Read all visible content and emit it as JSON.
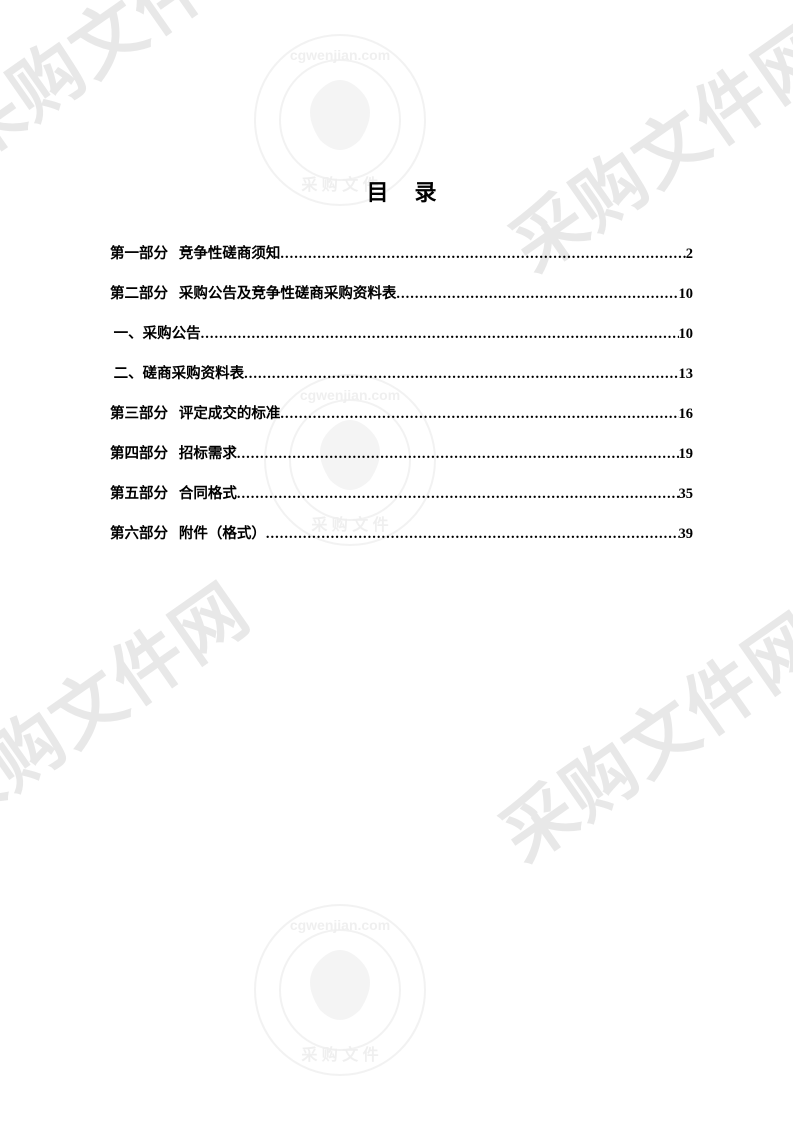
{
  "title": "目录",
  "watermark_text": "采购文件网",
  "watermark_url": "cgwenjian.com",
  "text_color": "#000000",
  "watermark_color": "#e8e8e8",
  "background_color": "#ffffff",
  "title_fontsize": 22,
  "entry_fontsize": 14.5,
  "toc": [
    {
      "label": "第一部分",
      "text": "竞争性磋商须知",
      "page": "2",
      "indent": ""
    },
    {
      "label": "第二部分",
      "text": "采购公告及竞争性磋商采购资料表",
      "page": "10",
      "indent": ""
    },
    {
      "label": "",
      "text": "一、采购公告",
      "page": "10",
      "indent": " "
    },
    {
      "label": "",
      "text": "二、磋商采购资料表",
      "page": "13",
      "indent": " "
    },
    {
      "label": "第三部分",
      "text": "评定成交的标准",
      "page": "16",
      "indent": ""
    },
    {
      "label": "第四部分",
      "text": "招标需求",
      "page": "19",
      "indent": ""
    },
    {
      "label": "第五部分",
      "text": "合同格式",
      "page": "35",
      "indent": ""
    },
    {
      "label": "第六部分",
      "text": "附件（格式）",
      "page": "39",
      "indent": ""
    }
  ]
}
